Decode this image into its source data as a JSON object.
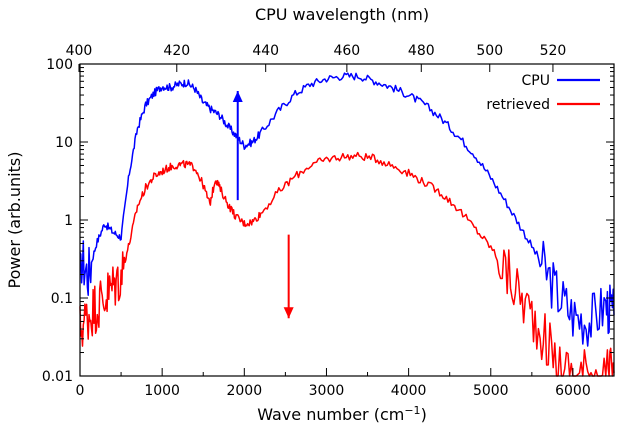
{
  "chart_data": {
    "type": "line",
    "title": "",
    "xlabel": "Wave number (cm",
    "xlabel_sup": "−1",
    "xlabel_close": ")",
    "ylabel": "Power (arb.units)",
    "x2label": "CPU wavelength (nm)",
    "xlim": [
      0,
      6500
    ],
    "ylim": [
      0.01,
      100
    ],
    "yscale": "log",
    "grid": false,
    "legend_position": "top-right",
    "x_ticks": [
      0,
      1000,
      2000,
      3000,
      4000,
      5000,
      6000
    ],
    "x_tick_labels": [
      "0",
      "1000",
      "2000",
      "3000",
      "4000",
      "5000",
      "6000"
    ],
    "y_ticks": [
      0.01,
      0.1,
      1,
      10,
      100
    ],
    "y_tick_labels": [
      "0.01",
      "0.1",
      "1",
      "10",
      "100"
    ],
    "x2_ticks_nm": [
      400,
      420,
      440,
      460,
      480,
      500,
      520
    ],
    "x2_tick_labels": [
      "400",
      "420",
      "440",
      "460",
      "480",
      "500",
      "520"
    ],
    "x2_ref_wavelength_nm": 400.2,
    "series": [
      {
        "name": "CPU",
        "color": "#0000ff",
        "x": [
          0,
          100,
          200,
          300,
          400,
          500,
          600,
          700,
          800,
          900,
          1000,
          1100,
          1200,
          1300,
          1400,
          1500,
          1600,
          1700,
          1800,
          1900,
          2000,
          2100,
          2200,
          2400,
          2600,
          2800,
          3000,
          3200,
          3400,
          3600,
          3800,
          4000,
          4200,
          4400,
          4600,
          4800,
          5000,
          5200,
          5400,
          5600,
          5800,
          6000,
          6200,
          6400,
          6500
        ],
        "y": [
          0.35,
          0.2,
          0.5,
          0.9,
          0.7,
          0.6,
          4,
          15,
          30,
          42,
          52,
          50,
          55,
          58,
          48,
          32,
          26,
          22,
          16,
          12,
          9,
          10,
          13,
          24,
          40,
          55,
          65,
          70,
          70,
          60,
          50,
          40,
          30,
          20,
          12,
          7,
          3.5,
          1.6,
          0.7,
          0.3,
          0.12,
          0.06,
          0.05,
          0.08,
          0.06
        ]
      },
      {
        "name": "retrieved",
        "color": "#ff0000",
        "x": [
          0,
          100,
          200,
          300,
          400,
          500,
          600,
          700,
          800,
          900,
          1000,
          1100,
          1200,
          1300,
          1400,
          1500,
          1580,
          1650,
          1700,
          1800,
          1900,
          2000,
          2100,
          2200,
          2400,
          2600,
          2800,
          3000,
          3200,
          3400,
          3600,
          3800,
          4000,
          4200,
          4400,
          4600,
          4800,
          5000,
          5200,
          5400,
          5600,
          5800,
          6000,
          6200,
          6400,
          6500
        ],
        "y": [
          0.04,
          0.06,
          0.08,
          0.1,
          0.14,
          0.2,
          0.5,
          1.5,
          2.6,
          3.6,
          4.2,
          4.8,
          5.1,
          5.2,
          4.7,
          2.8,
          1.6,
          3.4,
          2.6,
          1.6,
          1.1,
          0.9,
          0.95,
          1.2,
          2.2,
          3.5,
          5.0,
          6.0,
          6.5,
          6.6,
          6.1,
          5.0,
          4.0,
          3.0,
          2.2,
          1.4,
          0.8,
          0.45,
          0.2,
          0.09,
          0.04,
          0.015,
          0.01,
          0.012,
          0.01,
          0.011
        ]
      }
    ],
    "annotations": [
      {
        "kind": "arrow",
        "direction": "up",
        "color": "#0000ff",
        "x": 1920,
        "y_from": 1.8,
        "y_to": 45
      },
      {
        "kind": "arrow",
        "direction": "down",
        "color": "#ff0000",
        "x": 2540,
        "y_from": 0.65,
        "y_to": 0.055
      }
    ]
  }
}
